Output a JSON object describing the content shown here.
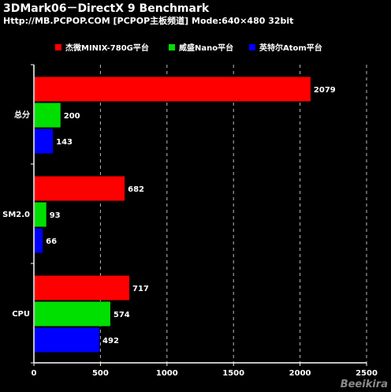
{
  "header": {
    "title": "3DMark06－DirectX 9 Benchmark",
    "subtitle": "Http://MB.PCPOP.COM [PCPOP主板频道] Mode:640×480 32bit"
  },
  "watermark": "Beeikira",
  "chart_data": {
    "type": "bar",
    "orientation": "horizontal",
    "categories": [
      "总分",
      "SM2.0",
      "CPU"
    ],
    "series": [
      {
        "name": "杰微MINIX-780G平台",
        "color": "#ff0000",
        "values": [
          2079,
          682,
          717
        ]
      },
      {
        "name": "威盛Nano平台",
        "color": "#00e000",
        "values": [
          200,
          93,
          574
        ]
      },
      {
        "name": "英特尔Atom平台",
        "color": "#0000ff",
        "values": [
          143,
          66,
          492
        ]
      }
    ],
    "xlim": [
      0,
      2500
    ],
    "xticks": [
      0,
      500,
      1000,
      1500,
      2000,
      2500
    ],
    "xticklabels": [
      "0",
      "500",
      "1000",
      "1500",
      "2000",
      "2500"
    ],
    "grid": "vertical dashed",
    "legend_position": "top"
  }
}
